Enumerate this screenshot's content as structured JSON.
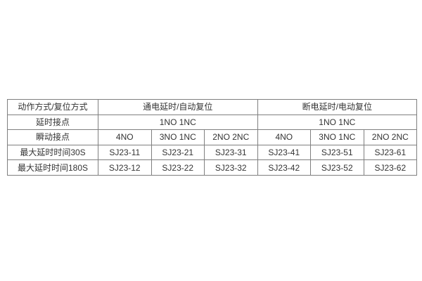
{
  "page": {
    "background": "#ffffff"
  },
  "table": {
    "colors": {
      "border": "#7f7f7f",
      "text": "#333333",
      "cell_background": "#ffffff"
    },
    "rows": {
      "action_mode": {
        "label": "动作方式/复位方式",
        "section1": "通电延时/自动复位",
        "section2": "断电延时/电动复位"
      },
      "delay_contacts": {
        "label": "延时接点",
        "section1": "1NO 1NC",
        "section2": "1NO 1NC"
      },
      "instant_contacts": {
        "label": "瞬动接点",
        "cells": [
          "4NO",
          "3NO 1NC",
          "2NO 2NC",
          "4NO",
          "3NO 1NC",
          "2NO 2NC"
        ]
      },
      "max_delay_30s": {
        "label": "最大延时时间30S",
        "cells": [
          "SJ23-11",
          "SJ23-21",
          "SJ23-31",
          "SJ23-41",
          "SJ23-51",
          "SJ23-61"
        ]
      },
      "max_delay_180s": {
        "label": "最大延时时间180S",
        "cells": [
          "SJ23-12",
          "SJ23-22",
          "SJ23-32",
          "SJ23-42",
          "SJ23-52",
          "SJ23-62"
        ]
      }
    }
  }
}
